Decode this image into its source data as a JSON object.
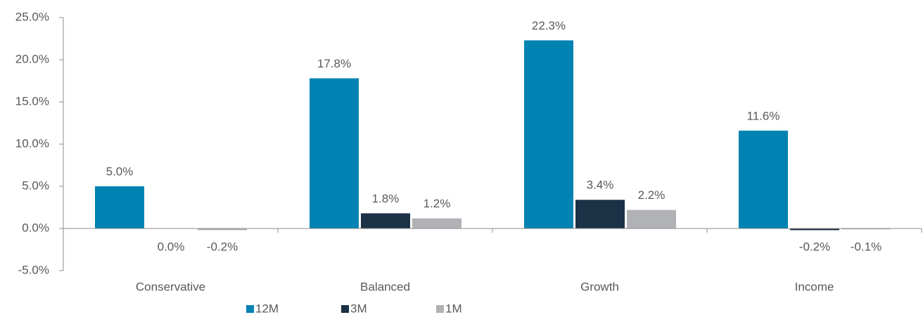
{
  "chart_data": {
    "type": "bar",
    "categories": [
      "Conservative",
      "Balanced",
      "Growth",
      "Income"
    ],
    "series": [
      {
        "name": "12M",
        "color": "#0082b2",
        "values": [
          5.0,
          17.8,
          22.3,
          11.6
        ],
        "value_labels": [
          "5.0%",
          "17.8%",
          "22.3%",
          "11.6%"
        ]
      },
      {
        "name": "3M",
        "color": "#1b3146",
        "values": [
          0.0,
          1.8,
          3.4,
          -0.2
        ],
        "value_labels": [
          "0.0%",
          "1.8%",
          "3.4%",
          "-0.2%"
        ]
      },
      {
        "name": "1M",
        "color": "#b1b2b5",
        "values": [
          -0.2,
          1.2,
          2.2,
          -0.1
        ],
        "value_labels": [
          "-0.2%",
          "1.2%",
          "2.2%",
          "-0.1%"
        ]
      }
    ],
    "ylim": [
      -5,
      25
    ],
    "yticks": [
      {
        "value": -5,
        "label": "-5.0%"
      },
      {
        "value": 0,
        "label": "0.0%"
      },
      {
        "value": 5,
        "label": "5.0%"
      },
      {
        "value": 10,
        "label": "10.0%"
      },
      {
        "value": 15,
        "label": "15.0%"
      },
      {
        "value": 20,
        "label": "20.0%"
      },
      {
        "value": 25,
        "label": "25.0%"
      }
    ],
    "legend": "bottom"
  }
}
